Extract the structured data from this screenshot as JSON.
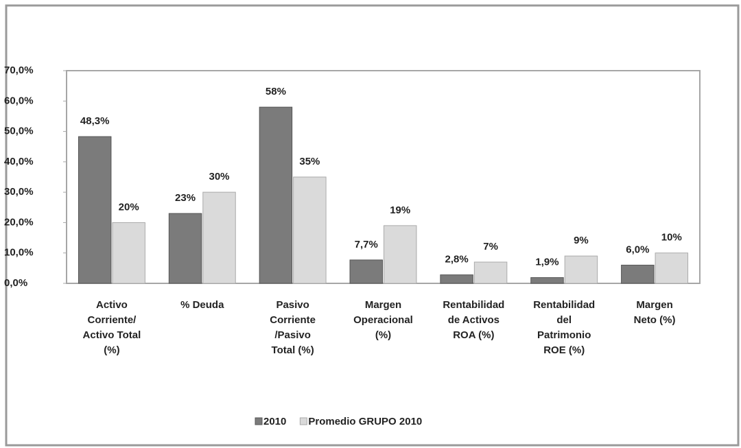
{
  "chart_data": {
    "type": "bar",
    "categories": [
      "Activo\nCorriente/\nActivo Total\n(%)",
      "% Deuda",
      "Pasivo\nCorriente\n/Pasivo\nTotal (%)",
      "Margen\nOperacional\n(%)",
      "Rentabilidad\nde Activos\nROA (%)",
      "Rentabilidad\ndel\nPatrimonio\nROE  (%)",
      "Margen\nNeto  (%)"
    ],
    "series": [
      {
        "name": "2010",
        "color": "#7b7b7b",
        "values": [
          48.3,
          23,
          58,
          7.7,
          2.8,
          1.9,
          6.0
        ],
        "value_labels": [
          "48,3%",
          "23%",
          "58%",
          "7,7%",
          "2,8%",
          "1,9%",
          "6,0%"
        ]
      },
      {
        "name": "Promedio GRUPO 2010",
        "color": "#dadada",
        "values": [
          20,
          30,
          35,
          19,
          7,
          9,
          10
        ],
        "value_labels": [
          "20%",
          "30%",
          "35%",
          "19%",
          "7%",
          "9%",
          "10%"
        ]
      }
    ],
    "ylim": [
      0,
      70
    ],
    "yticks": [
      {
        "value": 0,
        "label": "0,0%"
      },
      {
        "value": 10,
        "label": "10,0%"
      },
      {
        "value": 20,
        "label": "20,0%"
      },
      {
        "value": 30,
        "label": "30,0%"
      },
      {
        "value": 40,
        "label": "40,0%"
      },
      {
        "value": 50,
        "label": "50,0%"
      },
      {
        "value": 60,
        "label": "60,0%"
      },
      {
        "value": 70,
        "label": "70,0%"
      }
    ],
    "grid": false,
    "legend": "bottom"
  }
}
